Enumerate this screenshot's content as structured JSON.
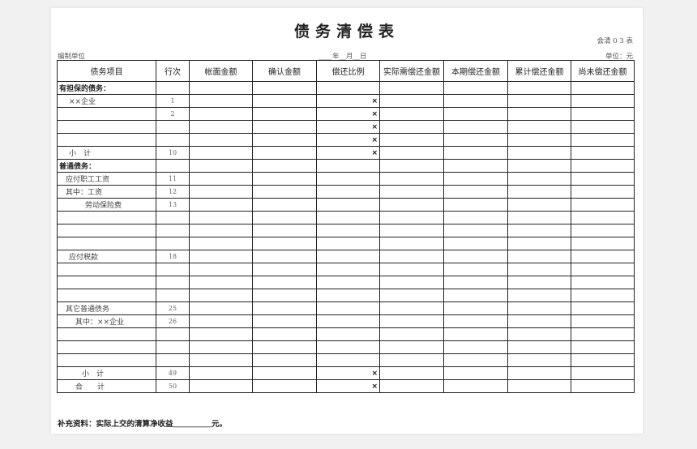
{
  "title": "债务清偿表",
  "form_code": "会清 0 3 表",
  "unit_label": "编制单位",
  "date_label": "____年__月__日",
  "currency_unit": "单位：元",
  "columns": [
    "债务项目",
    "行次",
    "帐面金额",
    "确认金额",
    "偿还比例",
    "实际需偿还金额",
    "本期偿还金额",
    "累计偿还金额",
    "尚未偿还金额"
  ],
  "rows": [
    {
      "item": "有担保的债务：",
      "line": "",
      "mark": "",
      "style": "b",
      "indent": 0
    },
    {
      "item": "××企业",
      "line": "1",
      "mark": "×",
      "indent": 12
    },
    {
      "item": "",
      "line": "2",
      "mark": "×",
      "indent": 0
    },
    {
      "item": "",
      "line": "",
      "mark": "×",
      "indent": 0
    },
    {
      "item": "",
      "line": "",
      "mark": "×",
      "indent": 0
    },
    {
      "item": "小　计",
      "line": "10",
      "mark": "×",
      "indent": 12
    },
    {
      "item": "普通债务：",
      "line": "",
      "mark": "",
      "style": "b",
      "indent": 0
    },
    {
      "item": "应付职工工资",
      "line": "11",
      "mark": "",
      "indent": 8
    },
    {
      "item": "其中：工资",
      "line": "12",
      "mark": "",
      "indent": 8
    },
    {
      "item": "劳动保险费",
      "line": "13",
      "mark": "",
      "indent": 32
    },
    {
      "item": "",
      "line": "",
      "mark": "",
      "indent": 0
    },
    {
      "item": "",
      "line": "",
      "mark": "",
      "indent": 0
    },
    {
      "item": "",
      "line": "",
      "mark": "",
      "indent": 0
    },
    {
      "item": "应付税款",
      "line": "18",
      "mark": "",
      "indent": 12
    },
    {
      "item": "",
      "line": "",
      "mark": "",
      "indent": 0
    },
    {
      "item": "",
      "line": "",
      "mark": "",
      "indent": 0
    },
    {
      "item": "",
      "line": "",
      "mark": "",
      "indent": 0
    },
    {
      "item": "其它普通债务",
      "line": "25",
      "mark": "",
      "indent": 8
    },
    {
      "item": "其中：××企业",
      "line": "26",
      "mark": "",
      "indent": 20
    },
    {
      "item": "",
      "line": "",
      "mark": "",
      "indent": 0
    },
    {
      "item": "",
      "line": "",
      "mark": "",
      "indent": 0
    },
    {
      "item": "",
      "line": "",
      "mark": "",
      "indent": 0
    },
    {
      "item": "小　计",
      "line": "49",
      "mark": "×",
      "indent": 28
    },
    {
      "item": "合　　计",
      "line": "50",
      "mark": "×",
      "indent": 20
    }
  ],
  "footnote": "补充资料：实际上交的清算净收益＿＿＿＿＿元。"
}
